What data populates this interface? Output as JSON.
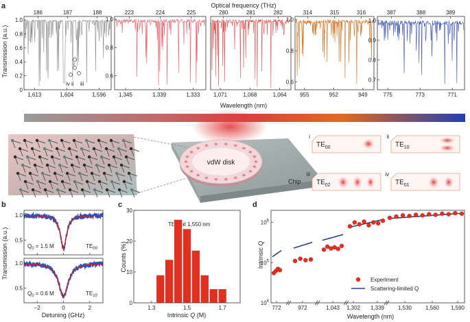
{
  "panels": {
    "a": "a",
    "b": "b",
    "c": "c",
    "d": "d"
  },
  "panel_a": {
    "top_axis_label": "Optical frequency (THz)",
    "bottom_axis_label": "Wavelength (nm)",
    "y_label": "Transmission (a.u.)",
    "mode_markers": [
      "i",
      "ii",
      "iii",
      "iv"
    ],
    "subplots": [
      {
        "freq_ticks": [
          "186",
          "187",
          "188"
        ],
        "wl_ticks": [
          "1,613",
          "1,604",
          "1,596"
        ],
        "y_ticks": [
          "1.0",
          "0.8",
          "0.6",
          "0.4",
          "0.2",
          "0"
        ],
        "color": "#8a8a8a"
      },
      {
        "freq_ticks": [
          "223",
          "224",
          "225"
        ],
        "wl_ticks": [
          "1,345",
          "1,339",
          "1,333"
        ],
        "y_ticks": [
          "1.0",
          "0.8",
          "0.6"
        ],
        "color": "#e0606a"
      },
      {
        "freq_ticks": [
          "280",
          "281",
          "282"
        ],
        "wl_ticks": [
          "1,071",
          "1,068",
          "1,064"
        ],
        "y_ticks": [],
        "color": "#e05050"
      },
      {
        "freq_ticks": [
          "314",
          "315",
          "316"
        ],
        "wl_ticks": [
          "955",
          "952",
          "949"
        ],
        "y_ticks": [
          "1.0",
          "0.8",
          "0.6"
        ],
        "color": "#d07020"
      },
      {
        "freq_ticks": [
          "387",
          "388",
          "389"
        ],
        "wl_ticks": [
          "775",
          "773",
          "771"
        ],
        "y_ticks": [
          "1.0",
          "0.9",
          "0.8",
          "0.7"
        ],
        "color": "#3850b0"
      }
    ]
  },
  "illustration": {
    "disk_label": "vdW disk",
    "chip_label": "Chip",
    "modes": [
      {
        "roman": "i",
        "name": "TE",
        "sub": "00"
      },
      {
        "roman": "ii",
        "name": "TE",
        "sub": "10"
      },
      {
        "roman": "iii",
        "name": "TE",
        "sub": "02"
      },
      {
        "roman": "iv",
        "name": "TE",
        "sub": "01"
      }
    ]
  },
  "panel_b": {
    "y_label": "Transmission (a.u.)",
    "x_label": "Detuning (GHz)",
    "x_ticks": [
      "−2",
      "0",
      "2"
    ],
    "y_ticks": [
      "1.0",
      "0.5"
    ],
    "top": {
      "q_text": "Q",
      "q_sub": "0",
      "q_value": " = 1.5 M",
      "mode": "TE",
      "mode_sub": "00"
    },
    "bottom": {
      "q_text": "Q",
      "q_sub": "0",
      "q_value": " = 0.6 M",
      "mode": "TE",
      "mode_sub": "10"
    }
  },
  "panel_c": {
    "y_label": "Counts (%)",
    "x_label_pre": "Intrinsic ",
    "x_label_q": "Q",
    "x_label_post": " (M)",
    "annotation_pre": "TE",
    "annotation_sub": "00",
    "annotation_post": " at 1,550 nm",
    "x_ticks": [
      "1.3",
      "1.5",
      "1.7"
    ],
    "y_ticks": [
      "0",
      "10",
      "20",
      "30"
    ]
  },
  "panel_d": {
    "y_label": "Intrinsic Q",
    "x_label": "Wavelength (nm)",
    "x_ticks": [
      "772",
      "972",
      "1,043",
      "1,302",
      "1,339",
      "1,530",
      "1,560",
      "1,590"
    ],
    "y_ticks": [
      {
        "base": "10",
        "exp": "4"
      },
      {
        "base": "10",
        "exp": "5"
      },
      {
        "base": "10",
        "exp": "6"
      }
    ],
    "legend": [
      "Experiment",
      "Scattering-limited Q"
    ]
  },
  "chart_data": [
    {
      "type": "bar",
      "title": "TE00 at 1,550 nm",
      "xlabel": "Intrinsic Q (M)",
      "ylabel": "Counts (%)",
      "categories": [
        1.35,
        1.4,
        1.45,
        1.5,
        1.55,
        1.6,
        1.65,
        1.7
      ],
      "values": [
        9,
        14,
        27,
        24,
        17,
        9,
        4.5,
        4.5
      ],
      "xlim": [
        1.2,
        1.8
      ],
      "ylim": [
        0,
        30
      ],
      "color": "#e03020"
    },
    {
      "type": "scatter",
      "xlabel": "Wavelength (nm)",
      "ylabel": "Intrinsic Q",
      "y_scale": "log",
      "ylim": [
        10000,
        2000000
      ],
      "segments": [
        {
          "range": "772",
          "points": [
            55000,
            62000,
            70000,
            65000
          ]
        },
        {
          "range": "972",
          "points": [
            110000,
            125000,
            115000,
            120000
          ]
        },
        {
          "range": "1,043",
          "points": [
            210000,
            250000,
            225000,
            240000,
            220000,
            260000
          ]
        },
        {
          "range": "1,302-1,339",
          "points": [
            800000,
            1000000,
            900000,
            1050000,
            850000,
            1000000,
            950000,
            1100000
          ]
        },
        {
          "range": "1,530-1,590",
          "points": [
            1300000,
            1400000,
            1500000,
            1450000,
            1550000,
            1500000,
            1600000,
            1550000,
            1650000,
            1600000,
            1700000,
            1650000
          ]
        }
      ],
      "series": [
        {
          "name": "Experiment",
          "color": "#e03020"
        },
        {
          "name": "Scattering-limited Q",
          "color": "#2c3e80"
        }
      ]
    }
  ]
}
